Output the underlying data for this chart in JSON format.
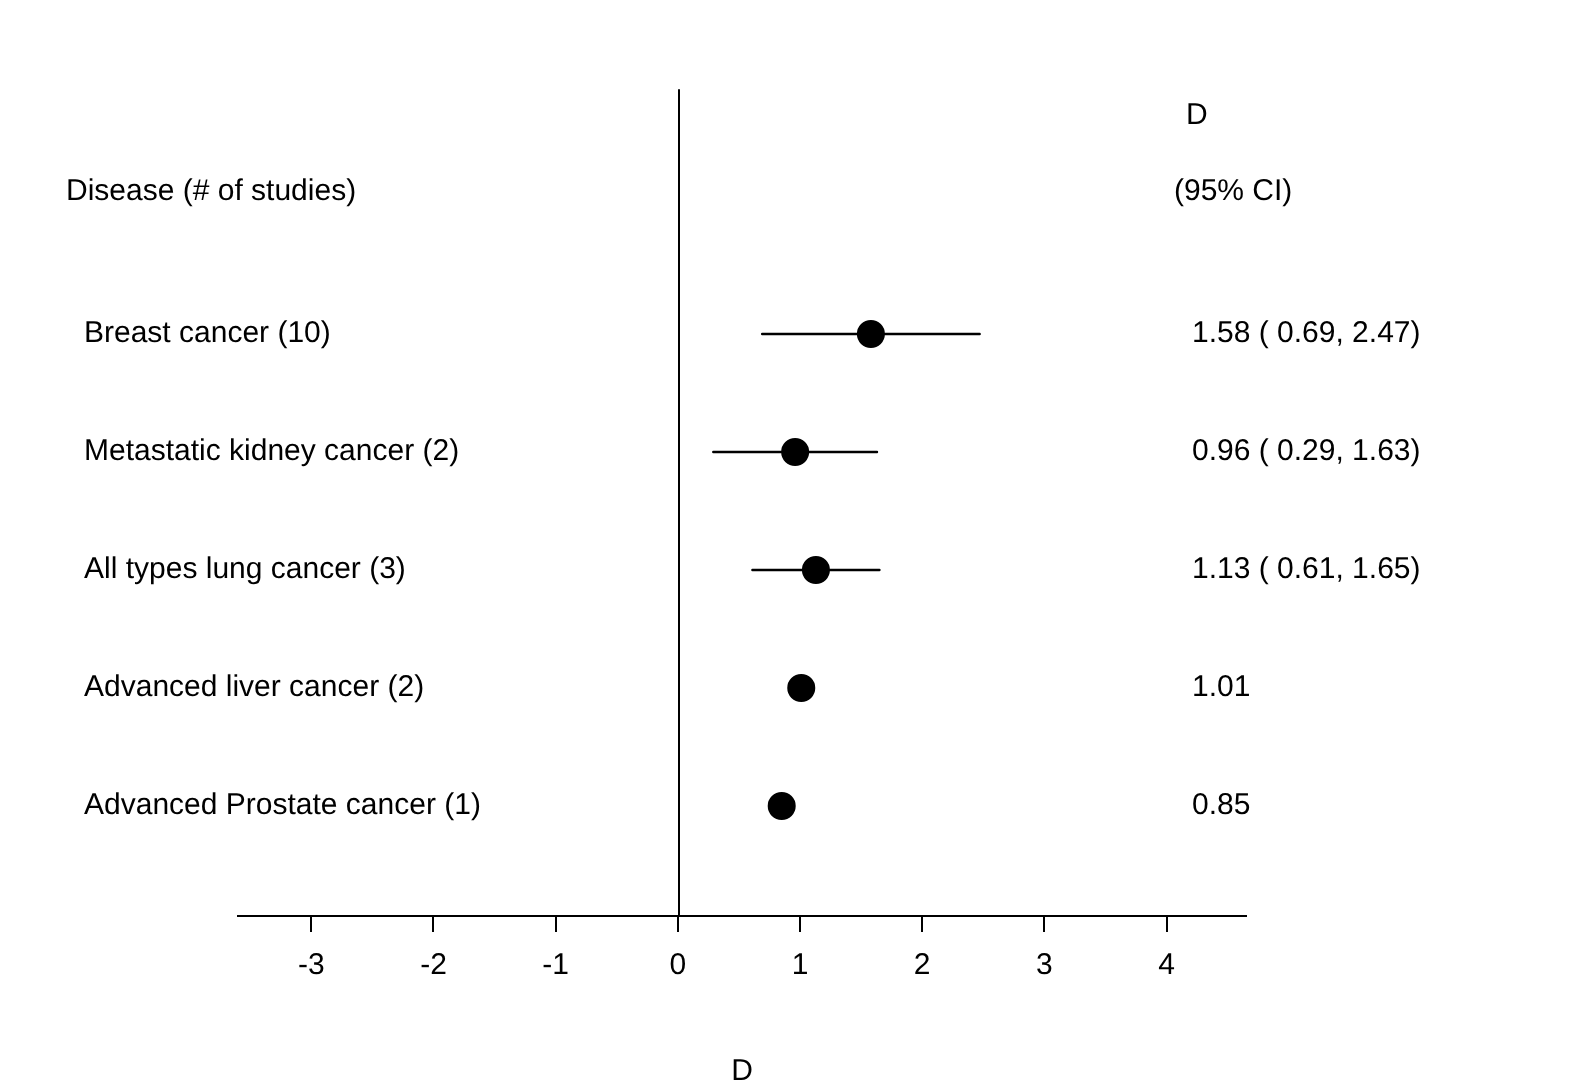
{
  "chart_data": {
    "type": "scatter",
    "orientation": "horizontal",
    "xlabel": "D",
    "categories": [
      "Breast cancer (10)",
      "Metastatic kidney cancer (2)",
      "All types lung cancer (3)",
      "Advanced liver cancer (2)",
      "Advanced Prostate cancer (1)"
    ],
    "values": [
      1.58,
      0.96,
      1.13,
      1.01,
      0.85
    ],
    "errors": [
      [
        0.69,
        2.47
      ],
      [
        0.29,
        1.63
      ],
      [
        0.61,
        1.65
      ],
      null,
      null
    ],
    "color": "#000000",
    "marker": "circle",
    "grid": false,
    "legend": false,
    "xlim": [
      -3.6,
      4.65
    ],
    "xticks": [
      -3,
      -2,
      -1,
      0,
      1,
      2,
      3,
      4
    ],
    "ref_lines": [
      {
        "axis": "x",
        "value": 0,
        "color": "#000000"
      }
    ],
    "annotations": [
      "Disease (# of studies)",
      "D",
      "(95% CI)",
      "1.58 ( 0.69, 2.47)",
      "0.96 ( 0.29, 1.63)",
      "1.13 ( 0.61, 1.65)",
      "1.01",
      "0.85"
    ]
  }
}
